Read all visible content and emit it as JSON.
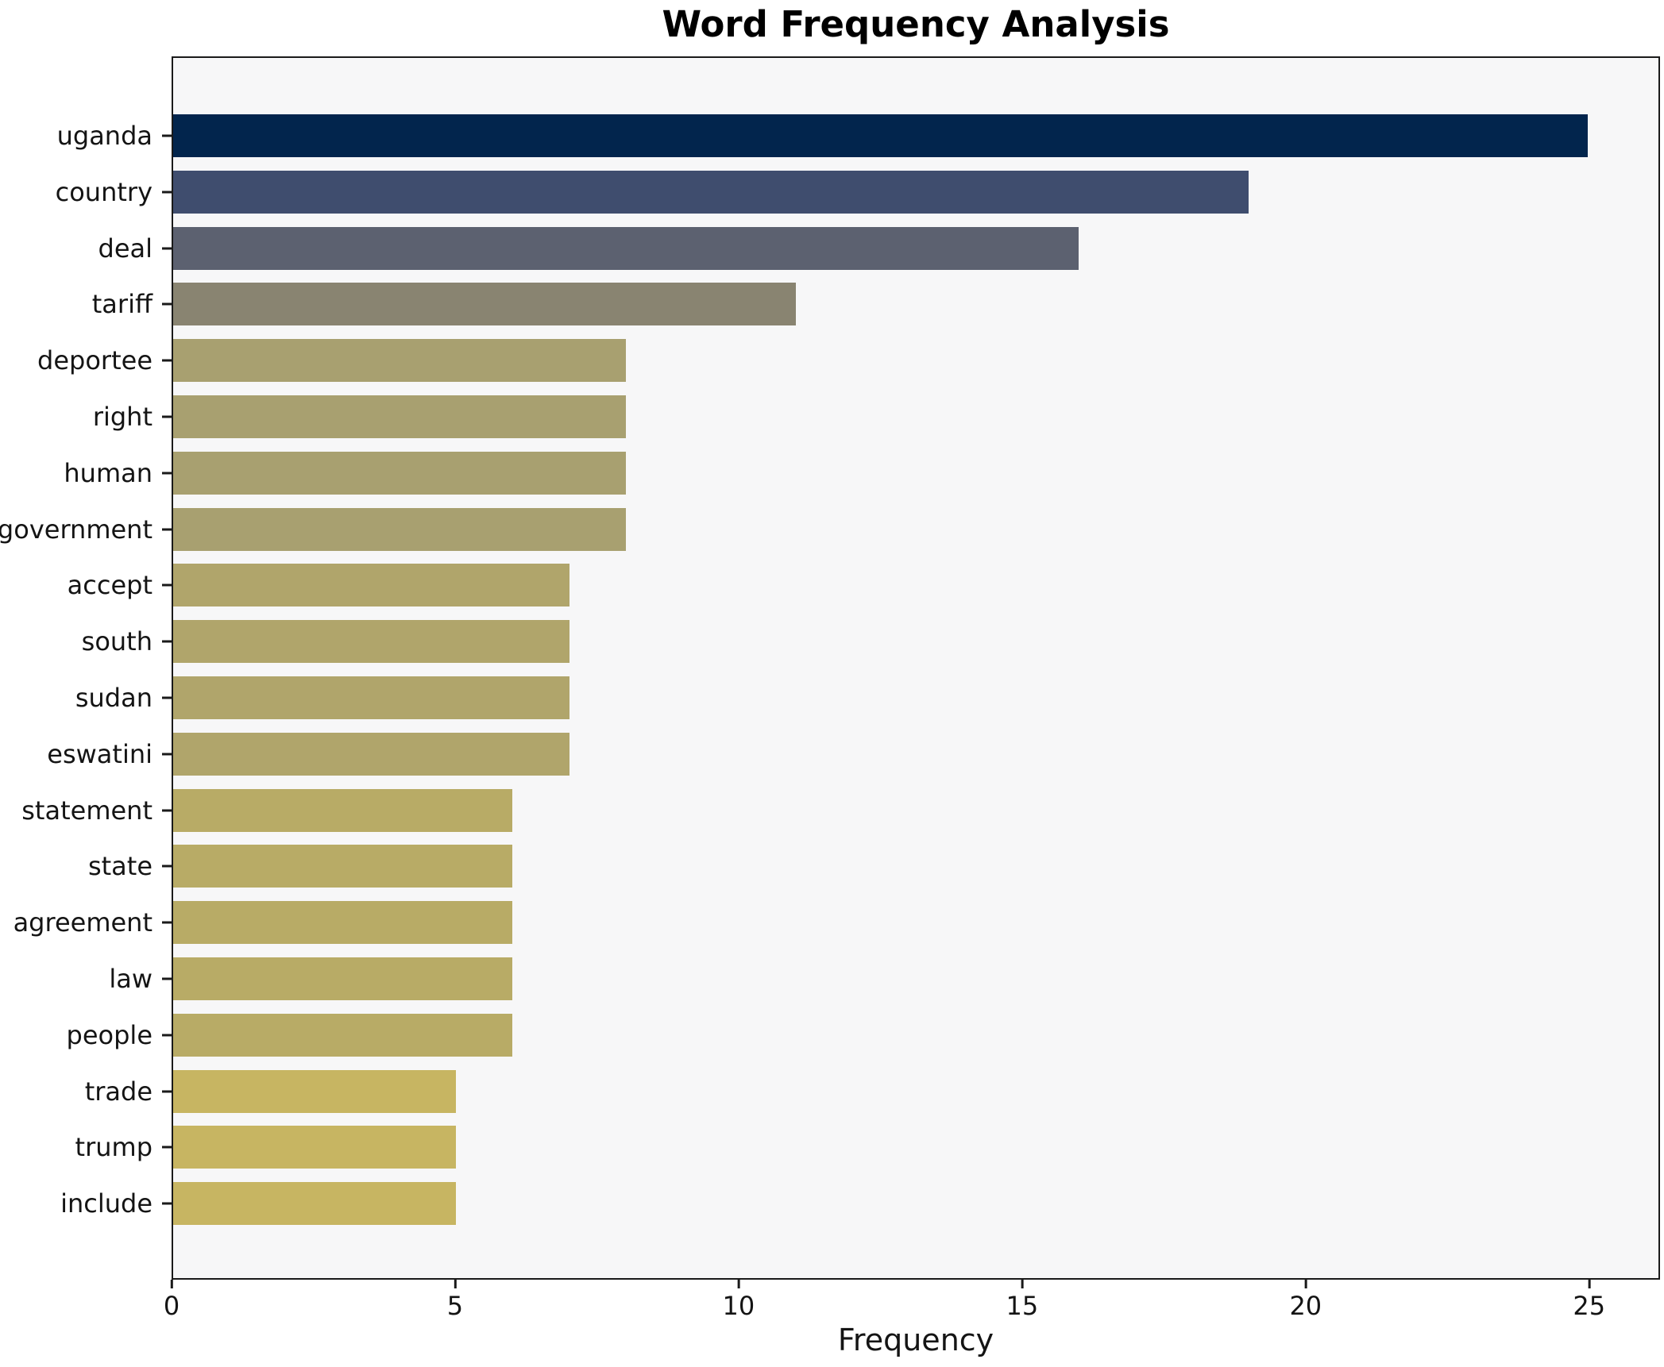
{
  "title": "Word Frequency Analysis",
  "chart_data": {
    "type": "bar",
    "orientation": "horizontal",
    "title": "Word Frequency Analysis",
    "xlabel": "Frequency",
    "ylabel": "",
    "categories": [
      "uganda",
      "country",
      "deal",
      "tariff",
      "deportee",
      "right",
      "human",
      "government",
      "accept",
      "south",
      "sudan",
      "eswatini",
      "statement",
      "state",
      "agreement",
      "law",
      "people",
      "trade",
      "trump",
      "include"
    ],
    "values": [
      25,
      19,
      16,
      11,
      8,
      8,
      8,
      8,
      7,
      7,
      7,
      7,
      6,
      6,
      6,
      6,
      6,
      5,
      5,
      5
    ],
    "bar_colors": [
      "#02254d",
      "#3f4d6e",
      "#5c6170",
      "#898471",
      "#a8a070",
      "#a8a070",
      "#a8a070",
      "#a8a070",
      "#b0a56b",
      "#b0a56b",
      "#b0a56b",
      "#b0a56b",
      "#b8ab66",
      "#b8ab66",
      "#b8ab66",
      "#b8ab66",
      "#b8ab66",
      "#c7b562",
      "#c7b562",
      "#c7b562"
    ],
    "x_ticks": [
      0,
      5,
      10,
      15,
      20,
      25
    ],
    "xlim": [
      0,
      26.25
    ],
    "grid": false,
    "legend": "none",
    "plot_background": "#f7f7f8",
    "figure_background": "#ffffff",
    "spine_color": "#1a1a1a"
  }
}
